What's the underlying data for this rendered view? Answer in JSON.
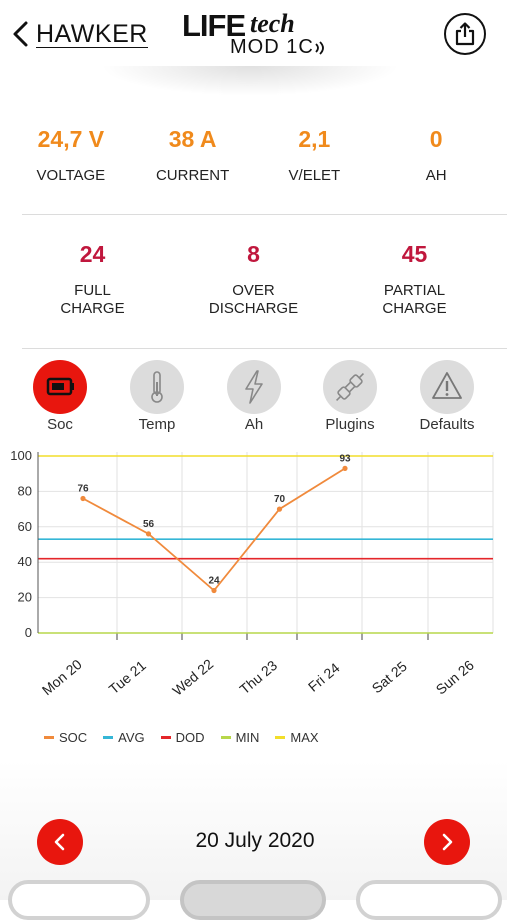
{
  "header": {
    "back_label": "HAWKER",
    "logo_life": "LIFE",
    "logo_tech": "tech",
    "logo_model": "MOD 1C"
  },
  "stats": [
    {
      "value": "24,7 V",
      "label": "VOLTAGE"
    },
    {
      "value": "38 A",
      "label": "CURRENT"
    },
    {
      "value": "2,1",
      "label": "V/ELET"
    },
    {
      "value": "0",
      "label": "AH"
    }
  ],
  "charges": [
    {
      "value": "24",
      "label_line1": "FULL",
      "label_line2": "CHARGE"
    },
    {
      "value": "8",
      "label_line1": "OVER",
      "label_line2": "DISCHARGE"
    },
    {
      "value": "45",
      "label_line1": "PARTIAL",
      "label_line2": "CHARGE"
    }
  ],
  "tabs": [
    {
      "label": "Soc",
      "icon": "battery-icon",
      "active": true
    },
    {
      "label": "Temp",
      "icon": "thermometer-icon",
      "active": false
    },
    {
      "label": "Ah",
      "icon": "lightning-icon",
      "active": false
    },
    {
      "label": "Plugins",
      "icon": "plug-icon",
      "active": false
    },
    {
      "label": "Defaults",
      "icon": "warning-icon",
      "active": false
    }
  ],
  "colors": {
    "accent_red": "#e8160e",
    "stat_orange": "#f08a1c",
    "charge_crimson": "#c0173d"
  },
  "chart_data": {
    "type": "line",
    "categories": [
      "Mon 20",
      "Tue 21",
      "Wed 22",
      "Thu 23",
      "Fri 24",
      "Sat 25",
      "Sun 26"
    ],
    "ylim": [
      0,
      100
    ],
    "yticks": [
      0,
      20,
      40,
      60,
      80,
      100
    ],
    "grid": true,
    "series": [
      {
        "name": "SOC",
        "color": "#f08a3c",
        "x": [
          "Mon 20",
          "Tue 21",
          "Wed 22",
          "Thu 23",
          "Fri 24"
        ],
        "values": [
          76,
          56,
          24,
          70,
          93
        ],
        "labels": true
      },
      {
        "name": "AVG",
        "color": "#35b6d6",
        "constant": 53
      },
      {
        "name": "DOD",
        "color": "#e4262a",
        "constant": 42
      },
      {
        "name": "MIN",
        "color": "#b7d74a",
        "constant": 0
      },
      {
        "name": "MAX",
        "color": "#f2de2a",
        "constant": 100
      }
    ],
    "legend_position": "bottom"
  },
  "footer": {
    "date": "20 July 2020"
  }
}
